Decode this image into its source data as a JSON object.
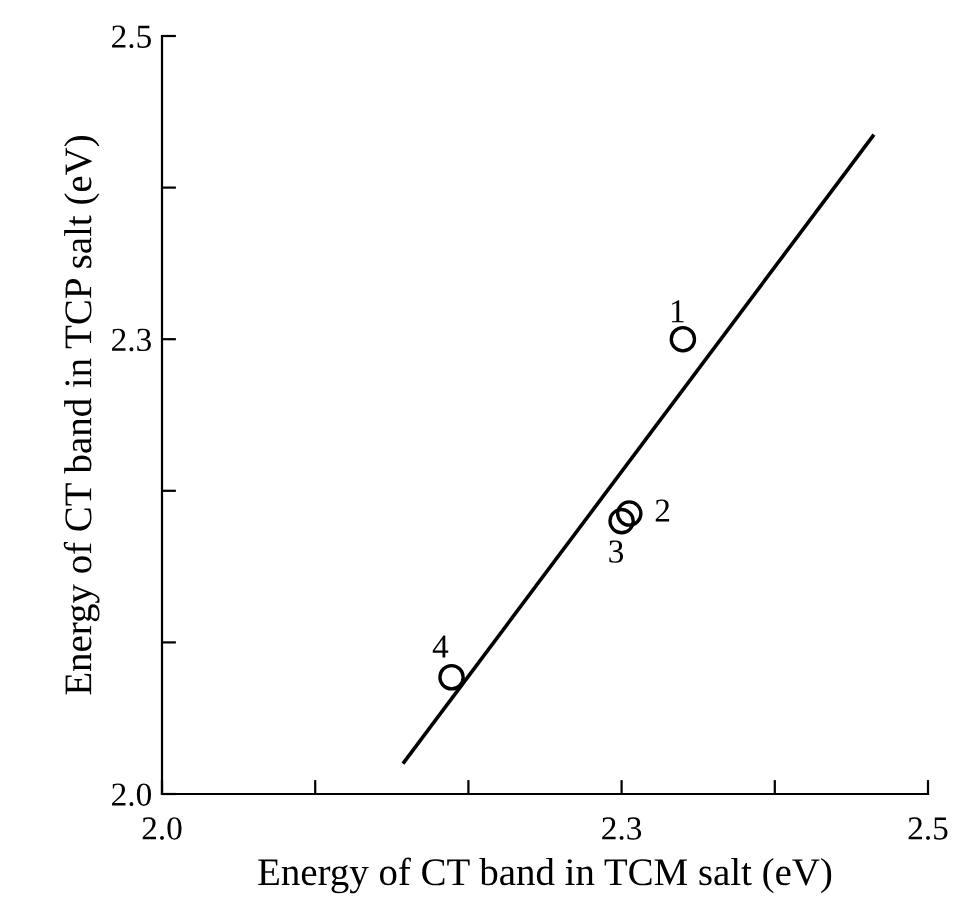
{
  "chart_data": {
    "type": "scatter",
    "xlabel": "Energy of CT band in TCM salt (eV)",
    "ylabel": "Energy of CT band in TCP salt (eV)",
    "series": [
      {
        "color": "#000000",
        "marker": "circle",
        "x": [
          2.34,
          2.305,
          2.3,
          2.189
        ],
        "values": [
          2.3,
          2.185,
          2.18,
          2.077
        ]
      },
      {
        "type": "line",
        "color": "#000000",
        "marker": "none",
        "line_style": "solid",
        "x": [
          2.158,
          2.464
        ],
        "values": [
          2.021,
          2.434
        ]
      }
    ],
    "annotations": [
      {
        "text": "1",
        "x": 2.34,
        "y": 2.3
      },
      {
        "text": "2",
        "x": 2.305,
        "y": 2.185
      },
      {
        "text": "3",
        "x": 2.3,
        "y": 2.18
      },
      {
        "text": "4",
        "x": 2.189,
        "y": 2.077
      }
    ],
    "xlim": [
      2.0,
      2.5
    ],
    "ylim": [
      2.0,
      2.5
    ],
    "xticks": [
      {
        "value": 2.0,
        "label": "2.0"
      },
      {
        "value": 2.1,
        "label": null
      },
      {
        "value": 2.2,
        "label": null
      },
      2.3,
      {
        "value": 2.4,
        "label": null
      },
      2.5
    ],
    "yticks": [
      {
        "value": 2.0,
        "label": "2.0"
      },
      {
        "value": 2.1,
        "label": null
      },
      {
        "value": 2.2,
        "label": null
      },
      2.3,
      {
        "value": 2.4,
        "label": null
      },
      2.5
    ],
    "grid": false,
    "legend": false
  }
}
